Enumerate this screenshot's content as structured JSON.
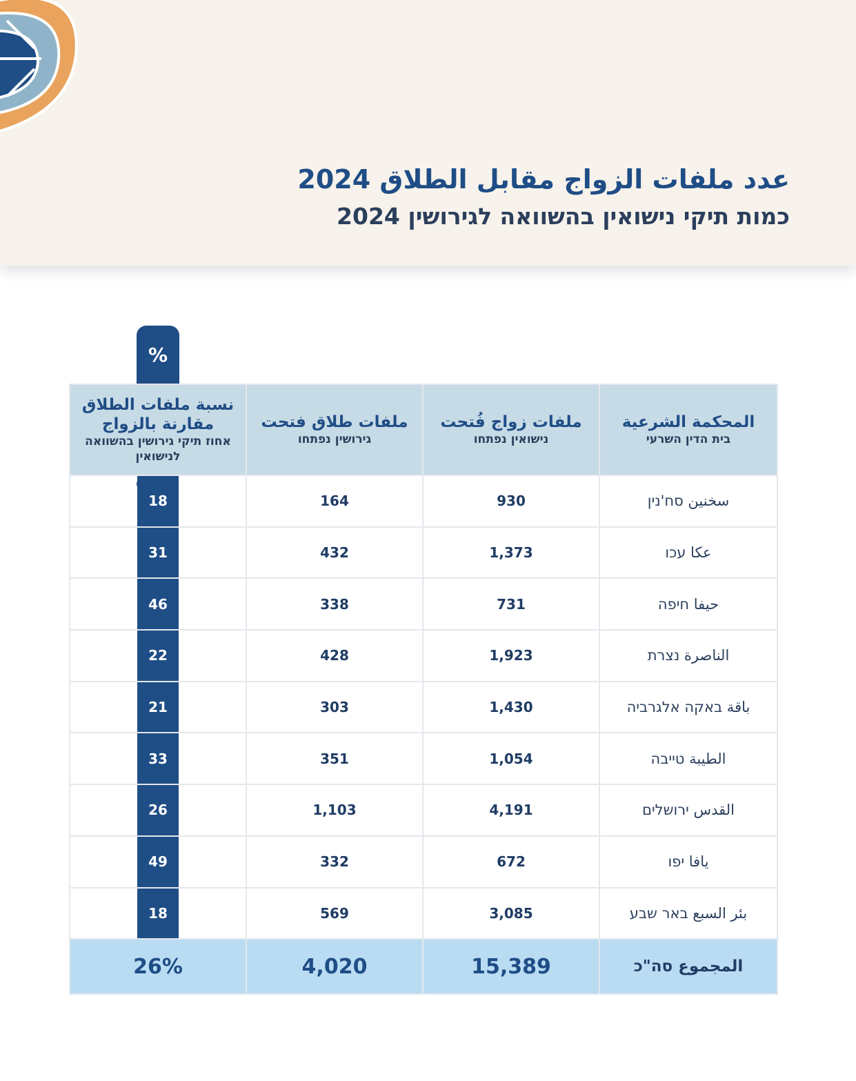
{
  "header": {
    "title_ar": "عدد ملفات الزواج مقابل الطلاق 2024",
    "title_he": "כמות תיקי נישואין בהשוואה לגירושין 2024"
  },
  "pct_tab_label": "%",
  "columns": {
    "court": {
      "main": "المحكمة الشرعية",
      "sub": "בית הדין השרעי"
    },
    "marriage": {
      "main": "ملفات زواج فُتحت",
      "sub": "נישואין נפתחו"
    },
    "divorce": {
      "main": "ملفات طلاق فتحت",
      "sub": "גירושין נפתחו"
    },
    "ratio": {
      "main": "نسبة ملفات الطلاق مقارنة بالزواج",
      "sub": "אחוז תיקי גירושין בהשוואה לנישואין"
    }
  },
  "rows": [
    {
      "court": "سخنين סח'נין",
      "marriage": "930",
      "divorce": "164",
      "ratio": "18"
    },
    {
      "court": "عكا עכו",
      "marriage": "1,373",
      "divorce": "432",
      "ratio": "31"
    },
    {
      "court": "حيفا חיפה",
      "marriage": "731",
      "divorce": "338",
      "ratio": "46"
    },
    {
      "court": "الناصرة נצרת",
      "marriage": "1,923",
      "divorce": "428",
      "ratio": "22"
    },
    {
      "court": "باقة באקה אלגרביה",
      "marriage": "1,430",
      "divorce": "303",
      "ratio": "21"
    },
    {
      "court": "الطيبة טייבה",
      "marriage": "1,054",
      "divorce": "351",
      "ratio": "33"
    },
    {
      "court": "القدس ירושלים",
      "marriage": "4,191",
      "divorce": "1,103",
      "ratio": "26"
    },
    {
      "court": "يافا יפו",
      "marriage": "672",
      "divorce": "332",
      "ratio": "49"
    },
    {
      "court": "بئر السبع באר שבע",
      "marriage": "3,085",
      "divorce": "569",
      "ratio": "18"
    }
  ],
  "total": {
    "court": "المجموع סה\"כ",
    "marriage": "15,389",
    "divorce": "4,020",
    "ratio": "26%"
  },
  "colors": {
    "navy": "#1f4d86",
    "header_blue": "#c7dbe6",
    "total_blue": "#b9dcf3",
    "band": "#f7f3ec"
  }
}
